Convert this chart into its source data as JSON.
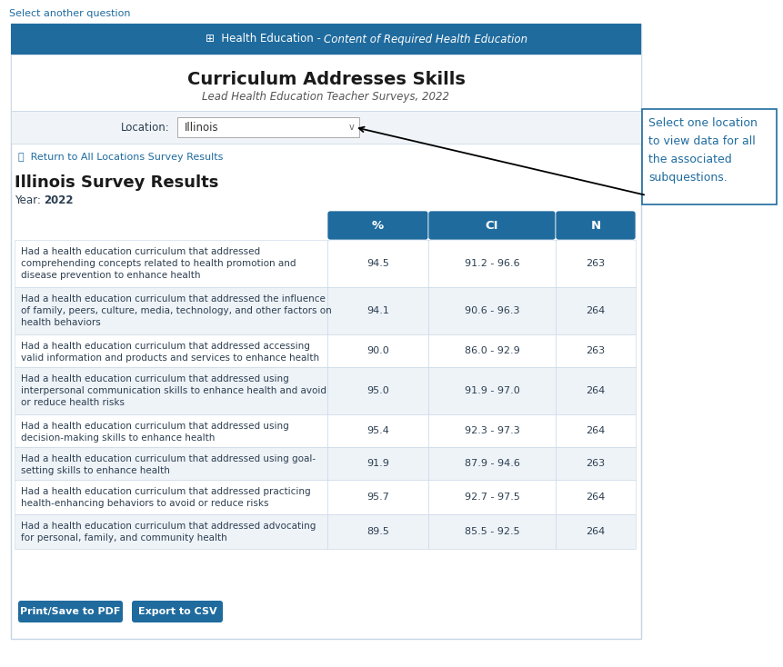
{
  "page_title": "Select another question",
  "header_bg": "#1f6b9e",
  "header_text_normal": "  Health Education - ",
  "header_text_italic": "Content of Required Health Education",
  "header_icon": "⊞",
  "main_title": "Curriculum Addresses Skills",
  "subtitle": "Lead Health Education Teacher Surveys, 2022",
  "location_label": "Location:",
  "location_value": "Illinois",
  "return_link": "Return to All Locations Survey Results",
  "section_title": "Illinois Survey Results",
  "year_label": "Year:",
  "year_value": "2022",
  "col_headers": [
    "%",
    "CI",
    "N"
  ],
  "col_header_bg": "#1f6b9e",
  "col_header_fg": "#ffffff",
  "table_rows": [
    {
      "description": "Had a health education curriculum that addressed\ncomprehending concepts related to health promotion and\ndisease prevention to enhance health",
      "pct": "94.5",
      "ci": "91.2 - 96.6",
      "n": "263"
    },
    {
      "description": "Had a health education curriculum that addressed the influence\nof family, peers, culture, media, technology, and other factors on\nhealth behaviors",
      "pct": "94.1",
      "ci": "90.6 - 96.3",
      "n": "264"
    },
    {
      "description": "Had a health education curriculum that addressed accessing\nvalid information and products and services to enhance health",
      "pct": "90.0",
      "ci": "86.0 - 92.9",
      "n": "263"
    },
    {
      "description": "Had a health education curriculum that addressed using\ninterpersonal communication skills to enhance health and avoid\nor reduce health risks",
      "pct": "95.0",
      "ci": "91.9 - 97.0",
      "n": "264"
    },
    {
      "description": "Had a health education curriculum that addressed using\ndecision-making skills to enhance health",
      "pct": "95.4",
      "ci": "92.3 - 97.3",
      "n": "264"
    },
    {
      "description": "Had a health education curriculum that addressed using goal-\nsetting skills to enhance health",
      "pct": "91.9",
      "ci": "87.9 - 94.6",
      "n": "263"
    },
    {
      "description": "Had a health education curriculum that addressed practicing\nhealth-enhancing behaviors to avoid or reduce risks",
      "pct": "95.7",
      "ci": "92.7 - 97.5",
      "n": "264"
    },
    {
      "description": "Had a health education curriculum that addressed advocating\nfor personal, family, and community health",
      "pct": "89.5",
      "ci": "85.5 - 92.5",
      "n": "264"
    }
  ],
  "row_bg_odd": "#ffffff",
  "row_bg_even": "#eef3f8",
  "row_border": "#c5d5e5",
  "text_color": "#2c3e50",
  "link_color": "#1f6b9e",
  "tooltip_text": "Select one location\nto view data for all\nthe associated\nsubquestions.",
  "tooltip_bg": "#ffffff",
  "tooltip_border": "#1f6b9e",
  "btn1_text": "Print/Save to PDF",
  "btn2_text": "Export to CSV",
  "btn_bg": "#1f6b9e",
  "btn_fg": "#ffffff",
  "page_bg": "#ffffff",
  "card_border": "#c5d5e5",
  "location_bar_bg": "#f0f4f8",
  "title_section_bg": "#ffffff"
}
